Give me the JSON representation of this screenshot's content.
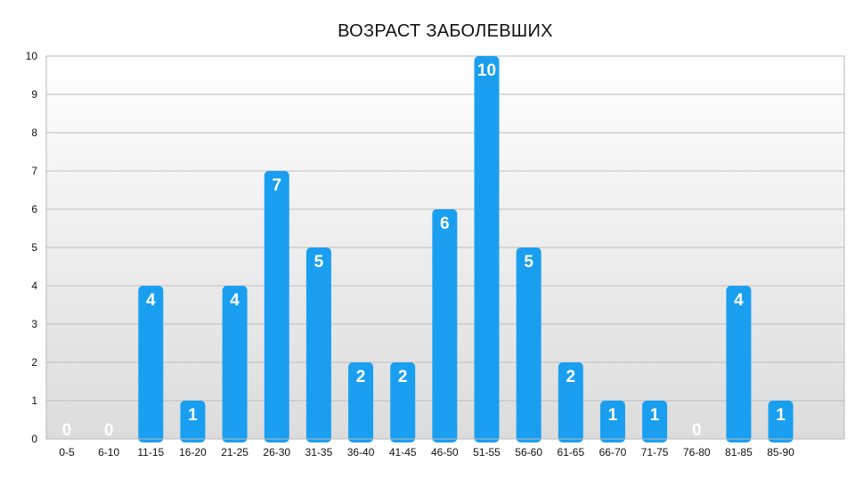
{
  "chart_data": {
    "type": "bar",
    "title": "ВОЗРАСТ ЗАБОЛЕВШИХ",
    "xlabel": "",
    "ylabel": "",
    "categories": [
      "0-5",
      "6-10",
      "11-15",
      "16-20",
      "21-25",
      "26-30",
      "31-35",
      "36-40",
      "41-45",
      "46-50",
      "51-55",
      "56-60",
      "61-65",
      "66-70",
      "71-75",
      "76-80",
      "81-85",
      "85-90"
    ],
    "values": [
      0,
      0,
      4,
      1,
      4,
      7,
      5,
      2,
      2,
      6,
      10,
      5,
      2,
      1,
      1,
      0,
      4,
      1
    ],
    "ylim": [
      0,
      10
    ],
    "yticks": [
      "0",
      "1",
      "2",
      "3",
      "4",
      "5",
      "6",
      "7",
      "8",
      "9",
      "10"
    ],
    "grid": true,
    "data_labels": true,
    "bar_color": "#1a9ff0",
    "legend": "none"
  }
}
